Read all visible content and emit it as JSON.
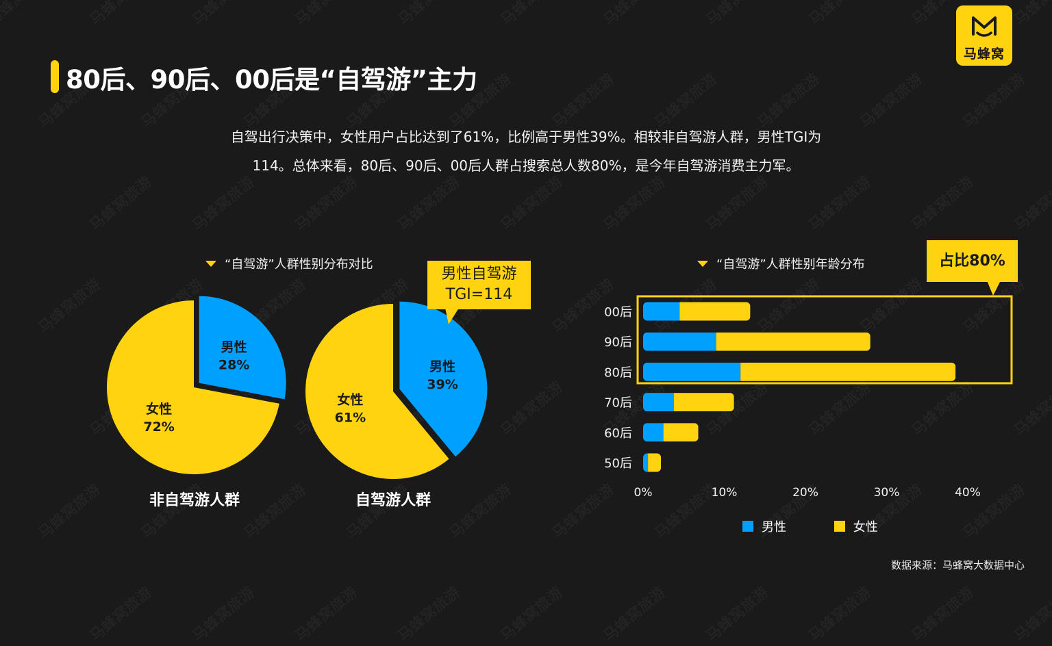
{
  "header": {
    "title": "80后、90后、00后是“自驾游”主力",
    "brand_name": "马蜂窝",
    "brand_color": "#ffd310",
    "watermark": "马蜂窝旅游"
  },
  "intro": {
    "line1": "自驾出行决策中，女性用户占比达到了61%，比例高于男性39%。相较非自驾游人群，男性TGI为",
    "line2": "114。总体来看，80后、90后、00后人群占搜索总人数80%，是今年自驾游消费主力军。"
  },
  "colors": {
    "male": "#00a0ff",
    "female": "#ffd310",
    "background": "#1a1a1a"
  },
  "chart_data": [
    {
      "type": "pie",
      "title": "“自驾游”人群性别分布对比",
      "caption": "非自驾游人群",
      "slices": [
        {
          "label": "男性",
          "value": 28,
          "value_label": "28%"
        },
        {
          "label": "女性",
          "value": 72,
          "value_label": "72%"
        }
      ]
    },
    {
      "type": "pie",
      "caption": "自驾游人群",
      "slices": [
        {
          "label": "男性",
          "value": 39,
          "value_label": "39%"
        },
        {
          "label": "女性",
          "value": 61,
          "value_label": "61%"
        }
      ],
      "annotation": {
        "line1": "男性自驾游",
        "line2": "TGI=114"
      }
    },
    {
      "type": "bar",
      "orientation": "horizontal",
      "stacked": true,
      "title": "“自驾游”人群性别年龄分布",
      "categories": [
        "00后",
        "90后",
        "80后",
        "70后",
        "60后",
        "50后"
      ],
      "series": [
        {
          "name": "男性",
          "values": [
            4.5,
            9,
            12,
            3.8,
            2.5,
            0.6
          ]
        },
        {
          "name": "女性",
          "values": [
            8.7,
            19,
            26.5,
            7.4,
            4.3,
            1.6
          ]
        }
      ],
      "xlim": [
        0,
        40
      ],
      "xticks": [
        "0%",
        "10%",
        "20%",
        "30%",
        "40%"
      ],
      "annotation": {
        "text": "占比80%",
        "highlight": [
          "00后",
          "90后",
          "80后"
        ]
      },
      "legend": [
        "男性",
        "女性"
      ]
    }
  ],
  "footer": {
    "source": "数据来源：马蜂窝大数据中心"
  }
}
